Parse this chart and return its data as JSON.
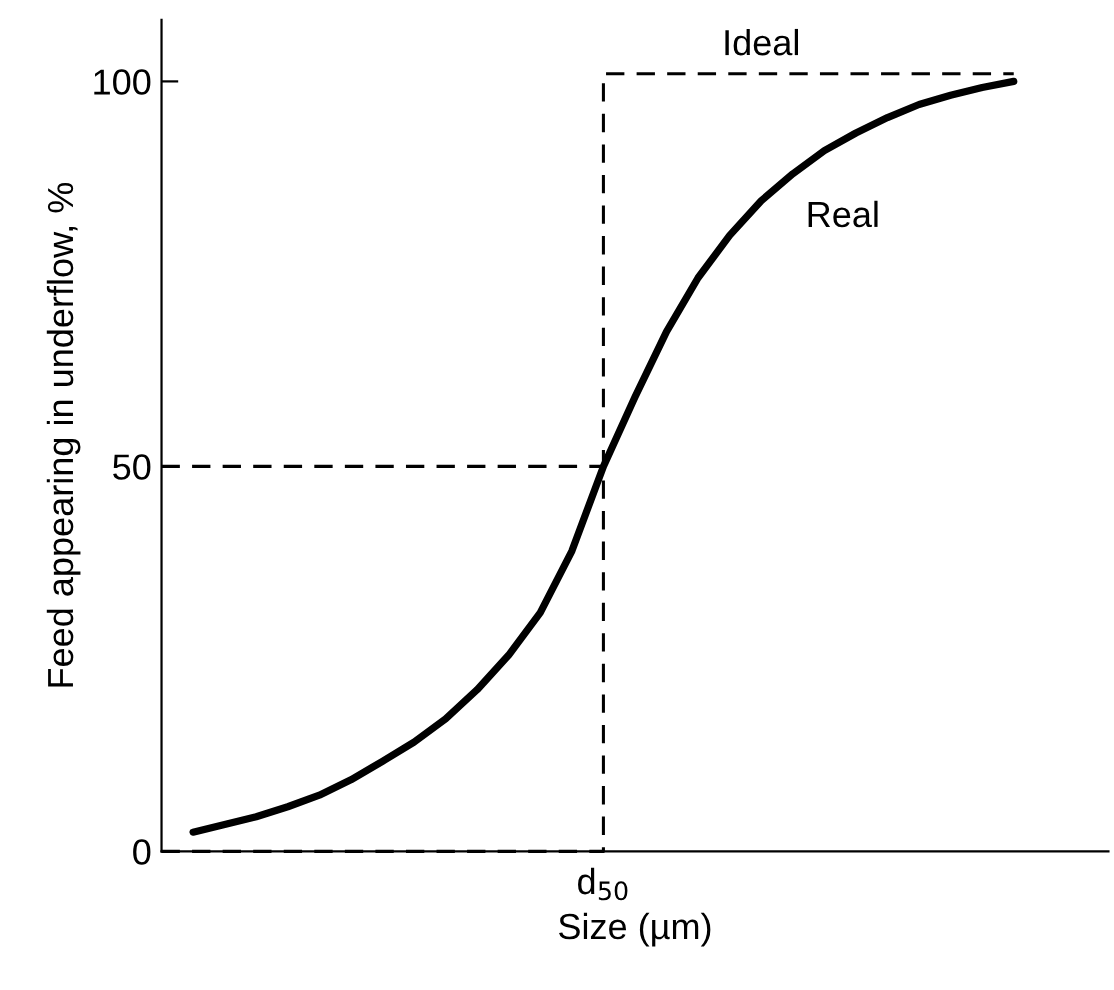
{
  "chart_data": {
    "type": "line",
    "xlabel": "Size (µm)",
    "ylabel": "Feed appearing in underflow, %",
    "ylim": [
      0,
      108
    ],
    "yticks": [
      0,
      50,
      100
    ],
    "grid": false,
    "legend": false,
    "marker": "none",
    "categories": [
      null,
      null,
      null,
      null,
      null,
      null,
      null,
      null,
      null,
      null,
      null,
      null,
      null,
      null,
      "d$_{50}$",
      null,
      null,
      null,
      null,
      null,
      null,
      null,
      null,
      null,
      null,
      null,
      null,
      null,
      null,
      null,
      null
    ],
    "series": [
      {
        "name": "Real",
        "color": "#000000",
        "line_style": "solid",
        "values": [
          null,
          2.5,
          3.5,
          4.5,
          5.8,
          7.3,
          9.3,
          11.7,
          14.2,
          17.2,
          21,
          25.5,
          31,
          39,
          50,
          59,
          67.5,
          74.5,
          80,
          84.5,
          88,
          91,
          93.3,
          95.3,
          97,
          98.2,
          99.2,
          100,
          null,
          null,
          null
        ]
      },
      {
        "name": "Ideal",
        "type": "step",
        "color": "#000000",
        "line_style": "dashed",
        "values": [
          0,
          0,
          0,
          0,
          0,
          0,
          0,
          0,
          0,
          0,
          0,
          0,
          0,
          0,
          0,
          101,
          101,
          101,
          101,
          101,
          101,
          101,
          101,
          101,
          101,
          101,
          101,
          101,
          null,
          null,
          null
        ]
      },
      {
        "color": "#000000",
        "line_style": "dashed",
        "values": [
          50,
          50,
          50,
          50,
          50,
          50,
          50,
          50,
          50,
          50,
          50,
          50,
          50,
          50,
          50,
          null,
          null,
          null,
          null,
          null,
          null,
          null,
          null,
          null,
          null,
          null,
          null,
          null,
          null,
          null,
          null
        ]
      }
    ]
  }
}
